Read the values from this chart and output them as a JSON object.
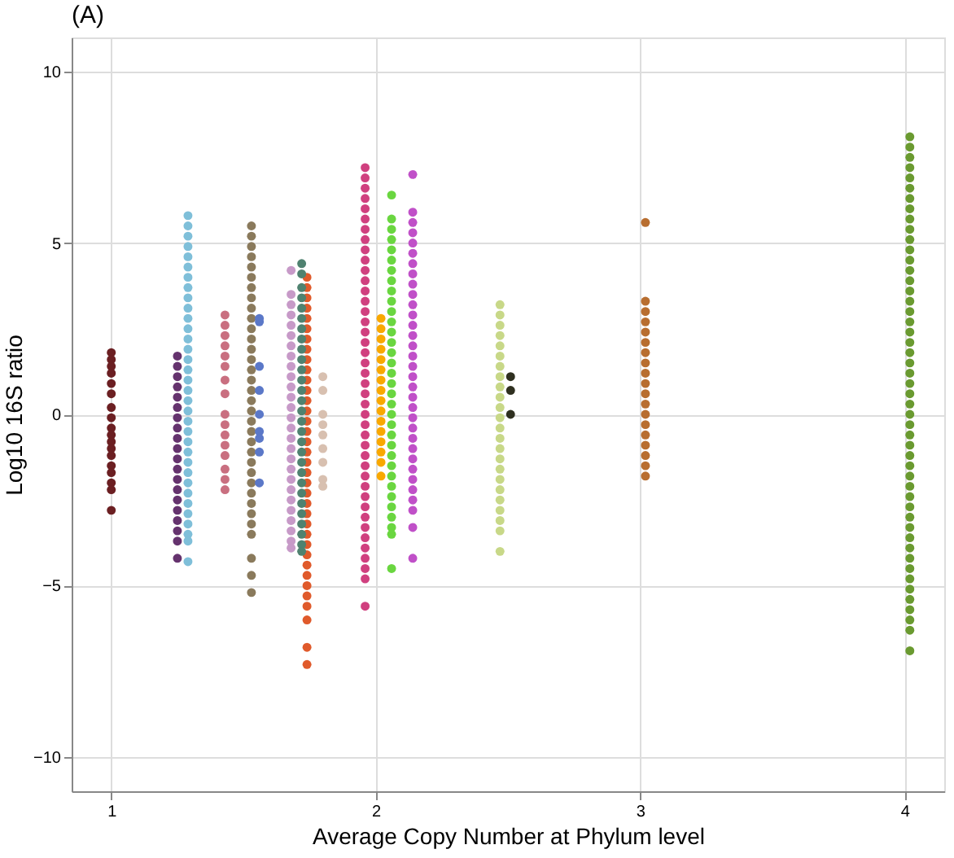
{
  "chart_data": {
    "type": "scatter",
    "title": "(A)",
    "xlabel": "Average Copy Number at Phylum level",
    "ylabel": "Log10 16S ratio",
    "xlim": [
      0.85,
      4.15
    ],
    "xticks": [
      1,
      2,
      3,
      4
    ],
    "ylim": [
      -11,
      11
    ],
    "yticks": [
      -10,
      -5,
      0,
      5,
      10
    ],
    "grid": true,
    "marker": "circle",
    "legend": false,
    "series": [
      {
        "color": "#6b1f22",
        "x": [
          1,
          1,
          1,
          1,
          1,
          1,
          1,
          1,
          1,
          1,
          1,
          1,
          1,
          1,
          1,
          1,
          1,
          1
        ],
        "values": [
          1.8,
          1.6,
          1.4,
          1.2,
          0.9,
          0.6,
          0.2,
          -0.1,
          -0.4,
          -0.6,
          -0.8,
          -1.0,
          -1.2,
          -1.5,
          -1.7,
          -2.0,
          -2.2,
          -2.8
        ]
      },
      {
        "color": "#65336e",
        "x": [
          1.25,
          1.25,
          1.25,
          1.25,
          1.25,
          1.25,
          1.25,
          1.25,
          1.25,
          1.25,
          1.25,
          1.25,
          1.25,
          1.25,
          1.25,
          1.25,
          1.25,
          1.25,
          1.25,
          1.25
        ],
        "values": [
          1.7,
          1.4,
          1.1,
          0.8,
          0.5,
          0.2,
          -0.1,
          -0.4,
          -0.7,
          -1.0,
          -1.3,
          -1.6,
          -1.9,
          -2.2,
          -2.5,
          -2.8,
          -3.1,
          -3.4,
          -3.7,
          -4.2
        ]
      },
      {
        "color": "#7fbfd9",
        "x": [
          1.29,
          1.29,
          1.29,
          1.29,
          1.29,
          1.29,
          1.29,
          1.29,
          1.29,
          1.29,
          1.29,
          1.29,
          1.29,
          1.29,
          1.29,
          1.29,
          1.29,
          1.29,
          1.29,
          1.29,
          1.29,
          1.29,
          1.29,
          1.29,
          1.29,
          1.29,
          1.29,
          1.29,
          1.29,
          1.29,
          1.29,
          1.29,
          1.29,
          1.29
        ],
        "values": [
          5.8,
          5.5,
          5.2,
          4.9,
          4.6,
          4.3,
          4.0,
          3.7,
          3.4,
          3.1,
          2.8,
          2.5,
          2.2,
          1.9,
          1.6,
          1.3,
          1.0,
          0.7,
          0.4,
          0.1,
          -0.2,
          -0.5,
          -0.8,
          -1.1,
          -1.4,
          -1.7,
          -2.0,
          -2.3,
          -2.6,
          -2.9,
          -3.2,
          -3.5,
          -3.7,
          -4.3
        ]
      },
      {
        "color": "#c96f80",
        "x": [
          1.43,
          1.43,
          1.43,
          1.43,
          1.43,
          1.43,
          1.43,
          1.43,
          1.43,
          1.43,
          1.43,
          1.43,
          1.43,
          1.43,
          1.43,
          1.43
        ],
        "values": [
          2.9,
          2.6,
          2.3,
          2.0,
          1.7,
          1.4,
          1.0,
          0.6,
          0.0,
          -0.3,
          -0.6,
          -0.9,
          -1.2,
          -1.6,
          -1.9,
          -2.2
        ]
      },
      {
        "color": "#8a7a5c",
        "x": [
          1.53,
          1.53,
          1.53,
          1.53,
          1.53,
          1.53,
          1.53,
          1.53,
          1.53,
          1.53,
          1.53,
          1.53,
          1.53,
          1.53,
          1.53,
          1.53,
          1.53,
          1.53,
          1.53,
          1.53,
          1.53,
          1.53,
          1.53,
          1.53,
          1.53,
          1.53,
          1.53,
          1.53,
          1.53,
          1.53,
          1.53,
          1.53,
          1.53,
          1.53
        ],
        "values": [
          5.5,
          5.2,
          4.9,
          4.6,
          4.3,
          4.0,
          3.7,
          3.4,
          3.1,
          2.8,
          2.5,
          2.2,
          1.9,
          1.6,
          1.3,
          1.0,
          0.7,
          0.4,
          0.1,
          -0.2,
          -0.5,
          -0.8,
          -1.1,
          -1.4,
          -1.7,
          -2.0,
          -2.3,
          -2.6,
          -2.9,
          -3.2,
          -3.5,
          -4.2,
          -4.7,
          -5.2
        ]
      },
      {
        "color": "#5b78c8",
        "x": [
          1.56,
          1.56,
          1.56,
          1.56,
          1.56,
          1.56,
          1.56,
          1.56,
          1.56
        ],
        "values": [
          2.8,
          2.7,
          1.4,
          0.7,
          0.0,
          -0.5,
          -0.7,
          -1.1,
          -2.0
        ]
      },
      {
        "color": "#c79ac8",
        "x": [
          1.68,
          1.68,
          1.68,
          1.68,
          1.68,
          1.68,
          1.68,
          1.68,
          1.68,
          1.68,
          1.68,
          1.68,
          1.68,
          1.68,
          1.68,
          1.68,
          1.68,
          1.68,
          1.68,
          1.68,
          1.68,
          1.68,
          1.68,
          1.68,
          1.68,
          1.68,
          1.68
        ],
        "values": [
          4.2,
          3.5,
          3.2,
          2.9,
          2.6,
          2.3,
          2.0,
          1.7,
          1.4,
          1.1,
          0.8,
          0.5,
          0.2,
          -0.1,
          -0.4,
          -0.7,
          -1.0,
          -1.3,
          -1.6,
          -1.9,
          -2.2,
          -2.5,
          -2.8,
          -3.1,
          -3.4,
          -3.7,
          -3.9
        ]
      },
      {
        "color": "#e05a2b",
        "x": [
          1.74,
          1.74,
          1.74,
          1.74,
          1.74,
          1.74,
          1.74,
          1.74,
          1.74,
          1.74,
          1.74,
          1.74,
          1.74,
          1.74,
          1.74,
          1.74,
          1.74,
          1.74,
          1.74,
          1.74,
          1.74,
          1.74,
          1.74,
          1.74,
          1.74,
          1.74,
          1.74,
          1.74,
          1.74,
          1.74,
          1.74,
          1.74,
          1.74,
          1.74,
          1.74,
          1.74
        ],
        "values": [
          4.0,
          3.7,
          3.4,
          3.1,
          2.8,
          2.5,
          2.2,
          1.9,
          1.6,
          1.3,
          1.0,
          0.7,
          0.4,
          0.1,
          -0.2,
          -0.5,
          -0.8,
          -1.1,
          -1.4,
          -1.7,
          -2.0,
          -2.3,
          -2.6,
          -2.9,
          -3.2,
          -3.5,
          -3.8,
          -4.1,
          -4.4,
          -4.7,
          -5.0,
          -5.3,
          -5.6,
          -6.0,
          -6.8,
          -7.3
        ]
      },
      {
        "color": "#4f8270",
        "x": [
          1.72,
          1.72,
          1.72,
          1.72,
          1.72,
          1.72,
          1.72,
          1.72,
          1.72,
          1.72,
          1.72,
          1.72,
          1.72,
          1.72,
          1.72,
          1.72,
          1.72,
          1.72,
          1.72,
          1.72,
          1.72,
          1.72,
          1.72,
          1.72,
          1.72,
          1.72,
          1.72,
          1.72,
          1.72
        ],
        "values": [
          4.4,
          4.1,
          3.7,
          3.4,
          3.1,
          2.8,
          2.5,
          2.2,
          1.9,
          1.6,
          1.3,
          1.0,
          0.7,
          0.4,
          0.1,
          -0.2,
          -0.5,
          -0.8,
          -1.1,
          -1.4,
          -1.7,
          -2.0,
          -2.3,
          -2.6,
          -2.9,
          -3.2,
          -3.5,
          -3.8,
          -4.0
        ]
      },
      {
        "color": "#d8c0b0",
        "x": [
          1.8,
          1.8,
          1.8,
          1.8,
          1.8,
          1.8,
          1.8,
          1.8,
          1.8
        ],
        "values": [
          1.1,
          0.7,
          0.0,
          -0.3,
          -0.6,
          -1.0,
          -1.4,
          -1.9,
          -2.1
        ]
      },
      {
        "color": "#d0407f",
        "x": [
          1.96,
          1.96,
          1.96,
          1.96,
          1.96,
          1.96,
          1.96,
          1.96,
          1.96,
          1.96,
          1.96,
          1.96,
          1.96,
          1.96,
          1.96,
          1.96,
          1.96,
          1.96,
          1.96,
          1.96,
          1.96,
          1.96,
          1.96,
          1.96,
          1.96,
          1.96,
          1.96,
          1.96,
          1.96,
          1.96,
          1.96,
          1.96,
          1.96,
          1.96,
          1.96,
          1.96,
          1.96,
          1.96,
          1.96,
          1.96,
          1.96,
          1.96
        ],
        "values": [
          7.2,
          6.9,
          6.6,
          6.3,
          6.0,
          5.7,
          5.4,
          5.1,
          4.8,
          4.5,
          4.2,
          3.9,
          3.6,
          3.3,
          3.0,
          2.7,
          2.4,
          2.1,
          1.8,
          1.5,
          1.2,
          0.9,
          0.6,
          0.3,
          0.0,
          -0.3,
          -0.6,
          -0.9,
          -1.2,
          -1.5,
          -1.8,
          -2.1,
          -2.4,
          -2.7,
          -3.0,
          -3.3,
          -3.6,
          -3.9,
          -4.2,
          -4.5,
          -4.8,
          -5.6
        ]
      },
      {
        "color": "#f9a800",
        "x": [
          2.02,
          2.02,
          2.02,
          2.02,
          2.02,
          2.02,
          2.02,
          2.02,
          2.02,
          2.02,
          2.02,
          2.02,
          2.02,
          2.02,
          2.02,
          2.02
        ],
        "values": [
          2.8,
          2.5,
          2.2,
          1.9,
          1.6,
          1.3,
          1.0,
          0.7,
          0.4,
          0.1,
          -0.2,
          -0.5,
          -0.8,
          -1.1,
          -1.4,
          -1.8
        ]
      },
      {
        "color": "#6ad640",
        "x": [
          2.06,
          2.06,
          2.06,
          2.06,
          2.06,
          2.06,
          2.06,
          2.06,
          2.06,
          2.06,
          2.06,
          2.06,
          2.06,
          2.06,
          2.06,
          2.06,
          2.06,
          2.06,
          2.06,
          2.06,
          2.06,
          2.06,
          2.06,
          2.06,
          2.06,
          2.06,
          2.06,
          2.06,
          2.06,
          2.06,
          2.06,
          2.06,
          2.06,
          2.06
        ],
        "values": [
          6.4,
          5.7,
          5.4,
          5.1,
          4.8,
          4.5,
          4.2,
          3.9,
          3.6,
          3.3,
          3.0,
          2.7,
          2.4,
          2.1,
          1.8,
          1.5,
          1.2,
          0.9,
          0.6,
          0.3,
          0.0,
          -0.3,
          -0.6,
          -0.9,
          -1.2,
          -1.5,
          -1.8,
          -2.1,
          -2.4,
          -2.7,
          -3.0,
          -3.3,
          -3.5,
          -4.5
        ]
      },
      {
        "color": "#c050c8",
        "x": [
          2.14,
          2.14,
          2.14,
          2.14,
          2.14,
          2.14,
          2.14,
          2.14,
          2.14,
          2.14,
          2.14,
          2.14,
          2.14,
          2.14,
          2.14,
          2.14,
          2.14,
          2.14,
          2.14,
          2.14,
          2.14,
          2.14,
          2.14,
          2.14,
          2.14,
          2.14,
          2.14,
          2.14,
          2.14,
          2.14,
          2.14,
          2.14,
          2.14
        ],
        "values": [
          7.0,
          5.9,
          5.6,
          5.3,
          5.0,
          4.7,
          4.4,
          4.1,
          3.8,
          3.5,
          3.2,
          2.9,
          2.6,
          2.3,
          2.0,
          1.7,
          1.4,
          1.1,
          0.8,
          0.5,
          0.2,
          -0.1,
          -0.4,
          -0.7,
          -1.0,
          -1.3,
          -1.6,
          -1.9,
          -2.2,
          -2.5,
          -2.8,
          -3.3,
          -4.2
        ]
      },
      {
        "color": "#c8d888",
        "x": [
          2.47,
          2.47,
          2.47,
          2.47,
          2.47,
          2.47,
          2.47,
          2.47,
          2.47,
          2.47,
          2.47,
          2.47,
          2.47,
          2.47,
          2.47,
          2.47,
          2.47,
          2.47,
          2.47,
          2.47,
          2.47,
          2.47,
          2.47,
          2.47
        ],
        "values": [
          3.2,
          2.9,
          2.6,
          2.3,
          2.0,
          1.7,
          1.4,
          1.1,
          0.8,
          0.5,
          0.2,
          -0.1,
          -0.4,
          -0.7,
          -1.0,
          -1.3,
          -1.6,
          -1.9,
          -2.2,
          -2.5,
          -2.8,
          -3.1,
          -3.4,
          -4.0
        ]
      },
      {
        "color": "#2f3020",
        "x": [
          2.51,
          2.51,
          2.51
        ],
        "values": [
          1.1,
          0.7,
          0.0
        ]
      },
      {
        "color": "#b86e30",
        "x": [
          3.02,
          3.02,
          3.02,
          3.02,
          3.02,
          3.02,
          3.02,
          3.02,
          3.02,
          3.02,
          3.02,
          3.02,
          3.02,
          3.02,
          3.02,
          3.02,
          3.02,
          3.02,
          3.02
        ],
        "values": [
          5.6,
          3.3,
          3.0,
          2.7,
          2.4,
          2.1,
          1.8,
          1.5,
          1.2,
          0.9,
          0.6,
          0.3,
          0.0,
          -0.3,
          -0.6,
          -0.9,
          -1.2,
          -1.5,
          -1.8
        ]
      },
      {
        "color": "#6a9a30",
        "x": [
          4.02,
          4.02,
          4.02,
          4.02,
          4.02,
          4.02,
          4.02,
          4.02,
          4.02,
          4.02,
          4.02,
          4.02,
          4.02,
          4.02,
          4.02,
          4.02,
          4.02,
          4.02,
          4.02,
          4.02,
          4.02,
          4.02,
          4.02,
          4.02,
          4.02,
          4.02,
          4.02,
          4.02,
          4.02,
          4.02,
          4.02,
          4.02,
          4.02,
          4.02,
          4.02,
          4.02,
          4.02,
          4.02,
          4.02,
          4.02,
          4.02,
          4.02,
          4.02,
          4.02,
          4.02,
          4.02,
          4.02,
          4.02,
          4.02,
          4.02
        ],
        "values": [
          8.1,
          7.8,
          7.5,
          7.2,
          6.9,
          6.6,
          6.3,
          6.0,
          5.7,
          5.4,
          5.1,
          4.8,
          4.5,
          4.2,
          3.9,
          3.6,
          3.3,
          3.0,
          2.7,
          2.4,
          2.1,
          1.8,
          1.5,
          1.2,
          0.9,
          0.6,
          0.3,
          0.0,
          -0.3,
          -0.6,
          -0.9,
          -1.2,
          -1.5,
          -1.8,
          -2.1,
          -2.4,
          -2.7,
          -3.0,
          -3.3,
          -3.6,
          -3.9,
          -4.2,
          -4.5,
          -4.8,
          -5.1,
          -5.4,
          -5.7,
          -6.0,
          -6.3,
          -6.9
        ]
      }
    ]
  }
}
